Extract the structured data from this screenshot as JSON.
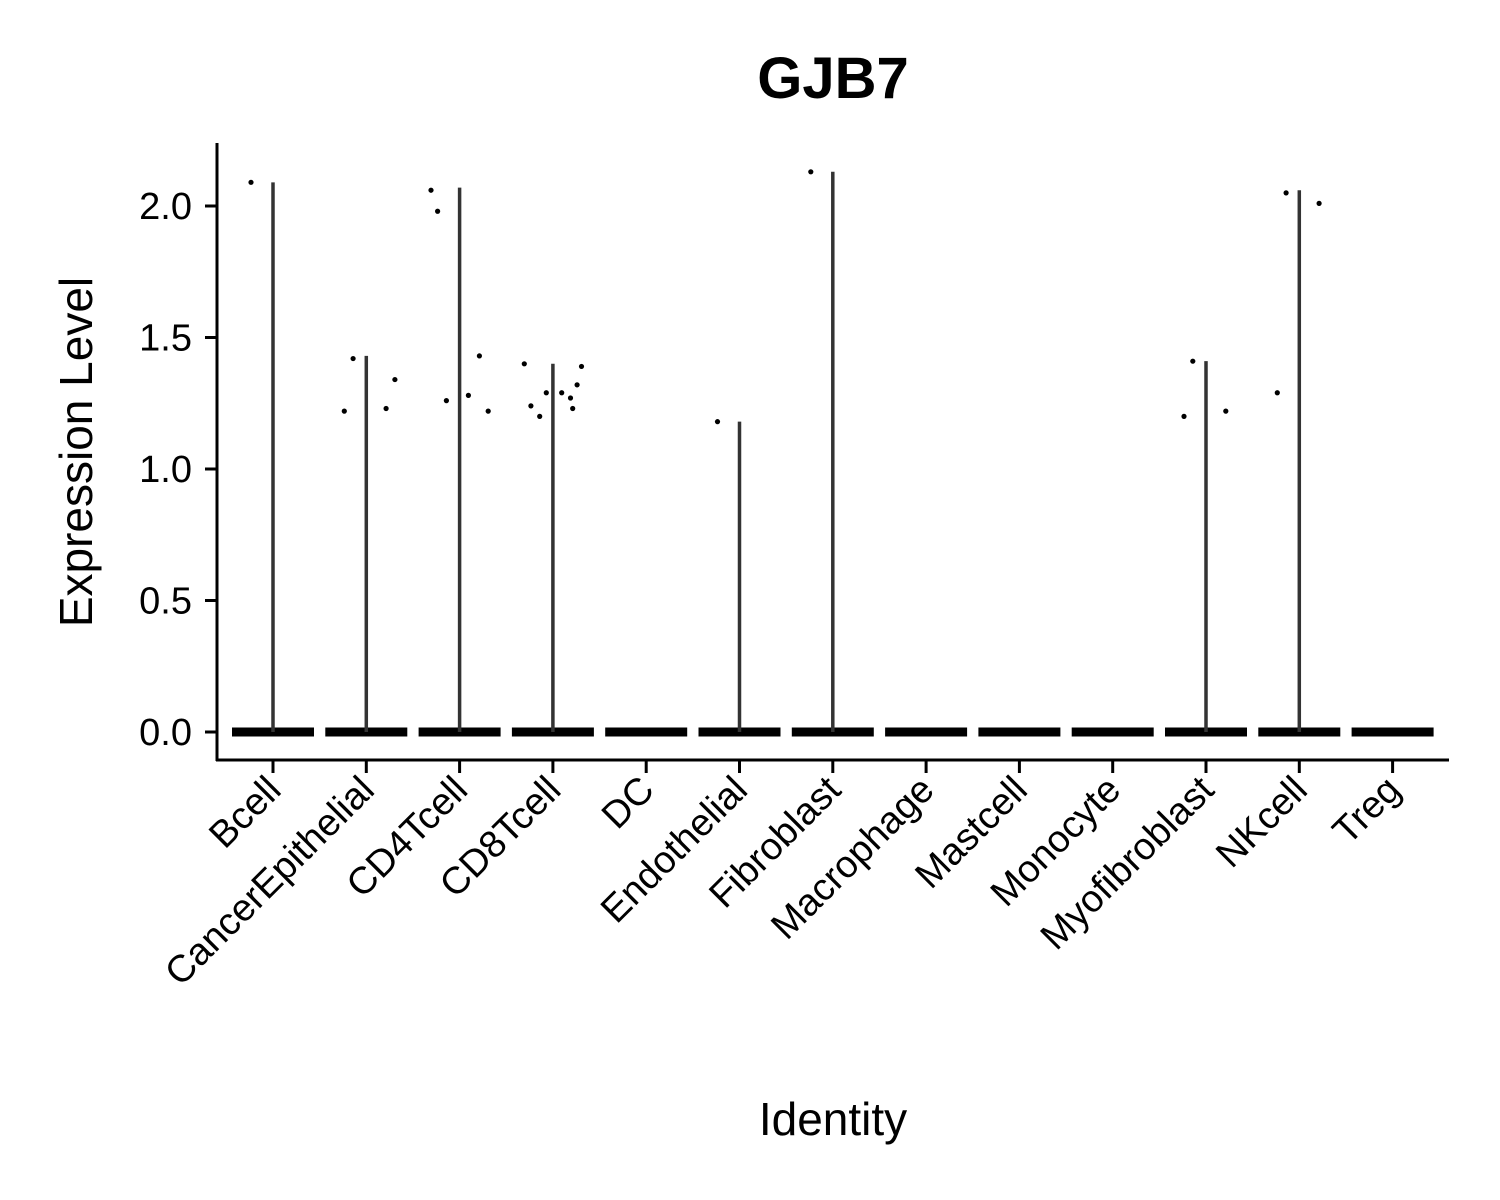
{
  "chart_data": {
    "type": "violin",
    "title": "GJB7",
    "xlabel": "Identity",
    "ylabel": "Expression Level",
    "ylim": [
      -0.1,
      2.25
    ],
    "yticks": [
      0.0,
      0.5,
      1.0,
      1.5,
      2.0
    ],
    "ytick_labels": [
      "0.0",
      "0.5",
      "1.0",
      "1.5",
      "2.0"
    ],
    "grid": false,
    "legend": "none",
    "categories": [
      "Bcell",
      "CancerEpithelial",
      "CD4Tcell",
      "CD8Tcell",
      "DC",
      "Endothelial",
      "Fibroblast",
      "Macrophage",
      "Mastcell",
      "Monocyte",
      "Myofibroblast",
      "NKcell",
      "Treg"
    ],
    "max_values": [
      2.09,
      1.43,
      2.07,
      1.4,
      0.0,
      1.18,
      2.13,
      0.0,
      0.0,
      0.0,
      1.41,
      2.06,
      0.0
    ],
    "points": [
      [
        2.09
      ],
      [
        1.22,
        1.23,
        1.42,
        1.34
      ],
      [
        1.98,
        1.43,
        1.26,
        1.22,
        2.06,
        1.28
      ],
      [
        1.24,
        1.23,
        1.2,
        1.39,
        1.4,
        1.29,
        1.32,
        1.29,
        1.27
      ],
      [],
      [
        1.18
      ],
      [
        2.13
      ],
      [],
      [],
      [],
      [
        1.2,
        1.22,
        1.41
      ],
      [
        1.29,
        2.01,
        2.05
      ],
      []
    ],
    "colors": {
      "violin": "#333333",
      "baseline": "#000000",
      "points": "#000000"
    }
  }
}
